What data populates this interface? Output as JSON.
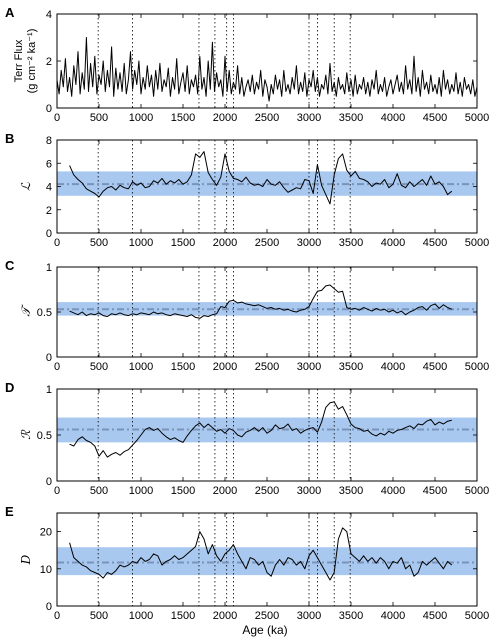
{
  "figure": {
    "xlabel": "Age (ka)",
    "xlim": [
      0,
      5000
    ],
    "xticks": [
      0,
      500,
      1000,
      1500,
      2000,
      2500,
      3000,
      3500,
      4000,
      4500,
      5000
    ],
    "event_lines": [
      490,
      900,
      1690,
      1880,
      2020,
      2100,
      3000,
      3100,
      3300,
      3490
    ],
    "band_color": "#a9c8f0",
    "mean_line_color": "#7a93b8",
    "trace_color": "#000000",
    "event_line_color": "#000000"
  },
  "chart_data": [
    {
      "type": "line",
      "letter": "A",
      "ylabel_lines": [
        "Terr Flux",
        "(g cm⁻² ka⁻¹)"
      ],
      "ylim": [
        0,
        4
      ],
      "yticks": [
        0,
        2,
        4
      ],
      "band": null,
      "mean": null,
      "x": [
        0,
        25,
        50,
        75,
        100,
        125,
        150,
        175,
        200,
        225,
        250,
        275,
        300,
        325,
        350,
        375,
        400,
        425,
        450,
        475,
        500,
        525,
        550,
        575,
        600,
        625,
        650,
        675,
        700,
        725,
        750,
        775,
        800,
        825,
        850,
        875,
        900,
        925,
        950,
        975,
        1000,
        1025,
        1050,
        1075,
        1100,
        1125,
        1150,
        1175,
        1200,
        1225,
        1250,
        1275,
        1300,
        1325,
        1350,
        1375,
        1400,
        1425,
        1450,
        1475,
        1500,
        1525,
        1550,
        1575,
        1600,
        1625,
        1650,
        1675,
        1700,
        1725,
        1750,
        1775,
        1800,
        1825,
        1850,
        1875,
        1900,
        1925,
        1950,
        1975,
        2000,
        2025,
        2050,
        2075,
        2100,
        2125,
        2150,
        2175,
        2200,
        2225,
        2250,
        2275,
        2300,
        2325,
        2350,
        2375,
        2400,
        2425,
        2450,
        2475,
        2500,
        2525,
        2550,
        2575,
        2600,
        2625,
        2650,
        2675,
        2700,
        2725,
        2750,
        2775,
        2800,
        2825,
        2850,
        2875,
        2900,
        2925,
        2950,
        2975,
        3000,
        3025,
        3050,
        3075,
        3100,
        3125,
        3150,
        3175,
        3200,
        3225,
        3250,
        3275,
        3300,
        3325,
        3350,
        3375,
        3400,
        3425,
        3450,
        3475,
        3500,
        3525,
        3550,
        3575,
        3600,
        3625,
        3650,
        3675,
        3700,
        3725,
        3750,
        3775,
        3800,
        3825,
        3850,
        3875,
        3900,
        3925,
        3950,
        3975,
        4000,
        4025,
        4050,
        4075,
        4100,
        4125,
        4150,
        4175,
        4200,
        4225,
        4250,
        4275,
        4300,
        4325,
        4350,
        4375,
        4400,
        4425,
        4450,
        4475,
        4500,
        4525,
        4550,
        4575,
        4600,
        4625,
        4650,
        4675,
        4700,
        4725,
        4750,
        4775,
        4800,
        4825,
        4850,
        4875,
        4900,
        4925,
        4950,
        4975,
        5000
      ],
      "values": [
        1.2,
        0.6,
        1.6,
        0.9,
        2.1,
        0.7,
        1.3,
        0.5,
        1.8,
        1.0,
        2.4,
        0.6,
        1.5,
        0.8,
        3.0,
        0.7,
        1.9,
        0.9,
        2.2,
        0.6,
        1.4,
        1.0,
        2.0,
        0.7,
        1.6,
        0.9,
        2.6,
        0.5,
        1.7,
        0.8,
        1.5,
        0.7,
        1.9,
        0.6,
        1.2,
        2.4,
        0.8,
        1.6,
        1.0,
        2.0,
        0.6,
        1.3,
        0.8,
        1.8,
        0.9,
        1.4,
        0.5,
        1.6,
        0.8,
        1.9,
        0.7,
        1.2,
        0.9,
        1.7,
        0.5,
        1.3,
        0.8,
        2.1,
        0.6,
        1.1,
        1.5,
        0.7,
        1.8,
        0.6,
        1.2,
        0.9,
        1.4,
        0.6,
        2.2,
        0.8,
        1.3,
        0.5,
        2.0,
        0.8,
        2.8,
        0.7,
        1.5,
        0.9,
        1.2,
        0.5,
        2.2,
        0.7,
        1.6,
        0.6,
        1.1,
        0.8,
        1.8,
        0.6,
        1.3,
        0.5,
        0.9,
        1.2,
        0.7,
        1.4,
        0.6,
        1.1,
        0.8,
        1.6,
        0.5,
        1.2,
        0.9,
        0.3,
        1.0,
        0.6,
        1.4,
        0.8,
        1.2,
        0.5,
        1.6,
        0.7,
        1.0,
        0.6,
        1.3,
        0.8,
        1.8,
        0.6,
        1.1,
        0.7,
        1.5,
        0.5,
        1.2,
        0.9,
        1.6,
        0.7,
        1.3,
        0.5,
        1.0,
        0.8,
        1.4,
        0.6,
        1.9,
        0.7,
        1.1,
        0.5,
        1.3,
        0.8,
        1.0,
        0.6,
        1.5,
        0.7,
        1.2,
        0.5,
        1.4,
        0.6,
        1.0,
        0.8,
        1.3,
        0.6,
        1.1,
        0.5,
        1.2,
        0.8,
        1.6,
        0.6,
        1.0,
        0.7,
        1.3,
        0.5,
        0.9,
        1.2,
        0.6,
        1.0,
        1.4,
        0.7,
        1.1,
        0.6,
        1.8,
        0.8,
        1.2,
        0.6,
        2.2,
        0.7,
        1.3,
        0.5,
        1.6,
        0.8,
        1.1,
        0.6,
        1.4,
        0.7,
        1.0,
        0.6,
        1.3,
        0.5,
        1.6,
        0.8,
        1.2,
        0.6,
        1.0,
        0.7,
        1.5,
        0.6,
        1.1,
        0.5,
        1.3,
        0.8,
        1.0,
        0.6,
        1.2,
        0.5,
        0.9
      ]
    },
    {
      "type": "line",
      "letter": "B",
      "ylabel": "ℒ",
      "ylim": [
        0,
        8
      ],
      "yticks": [
        0,
        2,
        4,
        6,
        8
      ],
      "band": [
        3.2,
        5.3
      ],
      "mean": 4.2,
      "x": [
        150,
        200,
        250,
        300,
        350,
        400,
        450,
        500,
        550,
        600,
        650,
        700,
        750,
        800,
        850,
        900,
        950,
        1000,
        1050,
        1100,
        1150,
        1200,
        1250,
        1300,
        1350,
        1400,
        1450,
        1500,
        1550,
        1600,
        1650,
        1700,
        1750,
        1800,
        1850,
        1900,
        1950,
        2000,
        2050,
        2100,
        2150,
        2200,
        2250,
        2300,
        2350,
        2400,
        2450,
        2500,
        2550,
        2600,
        2650,
        2700,
        2750,
        2800,
        2850,
        2900,
        2950,
        3000,
        3050,
        3100,
        3150,
        3200,
        3250,
        3300,
        3350,
        3400,
        3450,
        3500,
        3550,
        3600,
        3650,
        3700,
        3750,
        3800,
        3850,
        3900,
        3950,
        4000,
        4050,
        4100,
        4150,
        4200,
        4250,
        4300,
        4350,
        4400,
        4450,
        4500,
        4550,
        4600,
        4650,
        4700
      ],
      "values": [
        5.8,
        5.0,
        4.6,
        4.3,
        3.8,
        3.6,
        3.4,
        3.1,
        3.6,
        3.9,
        4.0,
        3.7,
        4.1,
        3.9,
        3.8,
        4.4,
        4.1,
        4.3,
        3.9,
        4.0,
        4.5,
        4.3,
        4.7,
        4.2,
        4.5,
        4.3,
        4.6,
        4.2,
        4.4,
        5.0,
        6.8,
        6.5,
        7.0,
        5.2,
        4.6,
        4.1,
        4.8,
        6.8,
        5.3,
        4.7,
        4.6,
        4.4,
        4.8,
        4.3,
        4.1,
        4.2,
        4.0,
        4.6,
        4.2,
        4.1,
        4.4,
        3.9,
        3.5,
        3.7,
        3.9,
        3.8,
        4.6,
        4.5,
        3.4,
        5.9,
        4.1,
        3.3,
        2.5,
        5.0,
        6.4,
        6.8,
        5.4,
        4.9,
        5.3,
        4.7,
        4.6,
        4.4,
        4.0,
        4.3,
        4.2,
        4.6,
        3.9,
        4.2,
        5.1,
        4.1,
        3.9,
        4.4,
        4.0,
        4.3,
        4.6,
        4.1,
        4.9,
        4.2,
        4.4,
        4.0,
        3.3,
        3.6
      ]
    },
    {
      "type": "line",
      "letter": "C",
      "ylabel": "𝒯",
      "ylim": [
        0,
        1
      ],
      "yticks": [
        0,
        0.5,
        1
      ],
      "band": [
        0.46,
        0.61
      ],
      "mean": 0.53,
      "x": [
        150,
        200,
        250,
        300,
        350,
        400,
        450,
        500,
        550,
        600,
        650,
        700,
        750,
        800,
        850,
        900,
        950,
        1000,
        1050,
        1100,
        1150,
        1200,
        1250,
        1300,
        1350,
        1400,
        1450,
        1500,
        1550,
        1600,
        1650,
        1700,
        1750,
        1800,
        1850,
        1900,
        1950,
        2000,
        2050,
        2100,
        2150,
        2200,
        2250,
        2300,
        2350,
        2400,
        2450,
        2500,
        2550,
        2600,
        2650,
        2700,
        2750,
        2800,
        2850,
        2900,
        2950,
        3000,
        3050,
        3100,
        3150,
        3200,
        3250,
        3300,
        3350,
        3400,
        3450,
        3500,
        3550,
        3600,
        3650,
        3700,
        3750,
        3800,
        3850,
        3900,
        3950,
        4000,
        4050,
        4100,
        4150,
        4200,
        4250,
        4300,
        4350,
        4400,
        4450,
        4500,
        4550,
        4600,
        4650,
        4700
      ],
      "values": [
        0.51,
        0.49,
        0.47,
        0.5,
        0.46,
        0.48,
        0.47,
        0.49,
        0.46,
        0.45,
        0.48,
        0.47,
        0.49,
        0.47,
        0.46,
        0.48,
        0.47,
        0.49,
        0.48,
        0.47,
        0.5,
        0.48,
        0.49,
        0.47,
        0.46,
        0.48,
        0.47,
        0.46,
        0.45,
        0.47,
        0.44,
        0.43,
        0.46,
        0.45,
        0.47,
        0.48,
        0.56,
        0.55,
        0.62,
        0.63,
        0.6,
        0.61,
        0.59,
        0.58,
        0.57,
        0.58,
        0.56,
        0.54,
        0.55,
        0.53,
        0.54,
        0.52,
        0.53,
        0.51,
        0.5,
        0.52,
        0.53,
        0.56,
        0.65,
        0.73,
        0.74,
        0.79,
        0.8,
        0.76,
        0.72,
        0.73,
        0.55,
        0.53,
        0.54,
        0.52,
        0.55,
        0.53,
        0.51,
        0.54,
        0.52,
        0.53,
        0.5,
        0.52,
        0.49,
        0.51,
        0.47,
        0.5,
        0.52,
        0.55,
        0.56,
        0.52,
        0.57,
        0.59,
        0.54,
        0.58,
        0.55,
        0.53
      ]
    },
    {
      "type": "line",
      "letter": "D",
      "ylabel": "ℛ",
      "ylim": [
        0,
        1
      ],
      "yticks": [
        0,
        0.5,
        1
      ],
      "band": [
        0.42,
        0.69
      ],
      "mean": 0.56,
      "x": [
        150,
        200,
        250,
        300,
        350,
        400,
        450,
        500,
        550,
        600,
        650,
        700,
        750,
        800,
        850,
        900,
        950,
        1000,
        1050,
        1100,
        1150,
        1200,
        1250,
        1300,
        1350,
        1400,
        1450,
        1500,
        1550,
        1600,
        1650,
        1700,
        1750,
        1800,
        1850,
        1900,
        1950,
        2000,
        2050,
        2100,
        2150,
        2200,
        2250,
        2300,
        2350,
        2400,
        2450,
        2500,
        2550,
        2600,
        2650,
        2700,
        2750,
        2800,
        2850,
        2900,
        2950,
        3000,
        3050,
        3100,
        3150,
        3200,
        3250,
        3300,
        3350,
        3400,
        3450,
        3500,
        3550,
        3600,
        3650,
        3700,
        3750,
        3800,
        3850,
        3900,
        3950,
        4000,
        4050,
        4100,
        4150,
        4200,
        4250,
        4300,
        4350,
        4400,
        4450,
        4500,
        4550,
        4600,
        4650,
        4700
      ],
      "values": [
        0.4,
        0.38,
        0.45,
        0.48,
        0.44,
        0.42,
        0.38,
        0.27,
        0.33,
        0.26,
        0.29,
        0.31,
        0.28,
        0.32,
        0.34,
        0.39,
        0.44,
        0.5,
        0.56,
        0.58,
        0.55,
        0.57,
        0.52,
        0.48,
        0.45,
        0.47,
        0.44,
        0.42,
        0.49,
        0.55,
        0.6,
        0.63,
        0.58,
        0.62,
        0.58,
        0.54,
        0.56,
        0.52,
        0.57,
        0.55,
        0.5,
        0.48,
        0.53,
        0.55,
        0.58,
        0.54,
        0.58,
        0.52,
        0.55,
        0.61,
        0.57,
        0.58,
        0.62,
        0.55,
        0.57,
        0.52,
        0.55,
        0.57,
        0.58,
        0.53,
        0.64,
        0.8,
        0.85,
        0.86,
        0.78,
        0.81,
        0.72,
        0.62,
        0.58,
        0.57,
        0.54,
        0.55,
        0.51,
        0.49,
        0.52,
        0.5,
        0.54,
        0.52,
        0.55,
        0.56,
        0.58,
        0.6,
        0.57,
        0.62,
        0.61,
        0.65,
        0.67,
        0.61,
        0.64,
        0.62,
        0.65,
        0.66
      ]
    },
    {
      "type": "line",
      "letter": "E",
      "ylabel": "D",
      "ylim": [
        0,
        25
      ],
      "yticks": [
        0,
        10,
        20
      ],
      "band": [
        8.3,
        15.8
      ],
      "mean": 11.7,
      "x": [
        150,
        200,
        250,
        300,
        350,
        400,
        450,
        500,
        550,
        600,
        650,
        700,
        750,
        800,
        850,
        900,
        950,
        1000,
        1050,
        1100,
        1150,
        1200,
        1250,
        1300,
        1350,
        1400,
        1450,
        1500,
        1550,
        1600,
        1650,
        1700,
        1750,
        1800,
        1850,
        1900,
        1950,
        2000,
        2050,
        2100,
        2150,
        2200,
        2250,
        2300,
        2350,
        2400,
        2450,
        2500,
        2550,
        2600,
        2650,
        2700,
        2750,
        2800,
        2850,
        2900,
        2950,
        3000,
        3050,
        3100,
        3150,
        3200,
        3250,
        3300,
        3350,
        3400,
        3450,
        3500,
        3550,
        3600,
        3650,
        3700,
        3750,
        3800,
        3850,
        3900,
        3950,
        4000,
        4050,
        4100,
        4150,
        4200,
        4250,
        4300,
        4350,
        4400,
        4450,
        4500,
        4550,
        4600,
        4650,
        4700
      ],
      "values": [
        17,
        13,
        12,
        11,
        10.5,
        9.5,
        9,
        8.5,
        7.5,
        9,
        8.5,
        9.5,
        11,
        10.5,
        11,
        12,
        11.5,
        13,
        12,
        12.5,
        14,
        13.5,
        11,
        12,
        12.5,
        13.5,
        12.5,
        13,
        14,
        15,
        16,
        20,
        18,
        14,
        16.5,
        13.5,
        12,
        14,
        15,
        16.5,
        14,
        12,
        10,
        13,
        12.5,
        11,
        12,
        9,
        8,
        11,
        12.5,
        11,
        13,
        12.5,
        11,
        12,
        10,
        13.5,
        15,
        13,
        11,
        9,
        7,
        9,
        18,
        21,
        20,
        14,
        13,
        12,
        13.5,
        12,
        13,
        11.5,
        13,
        12,
        10,
        12,
        11.5,
        13,
        10,
        11,
        8,
        9,
        12,
        11,
        12,
        13,
        11.5,
        10,
        12,
        11
      ]
    }
  ]
}
